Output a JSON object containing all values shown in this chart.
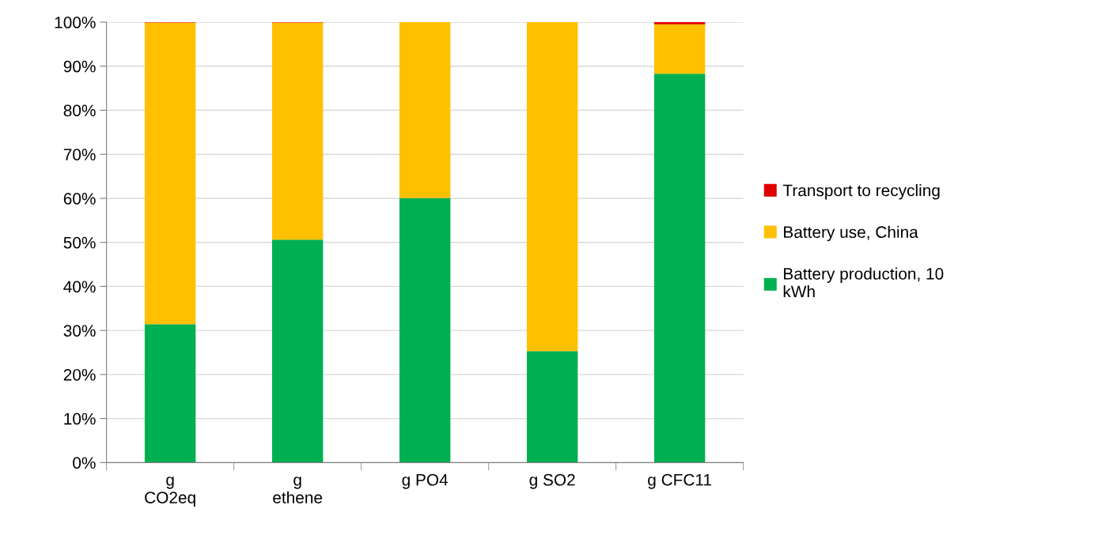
{
  "chart_data": {
    "type": "bar",
    "stacked": true,
    "categories": [
      "g\nCO2eq",
      "g\nethene",
      "g PO4",
      "g SO2",
      "g CFC11"
    ],
    "series": [
      {
        "name": "Battery production, 10\nkWh",
        "color": "#00b050",
        "values": [
          31.4,
          50.6,
          60.1,
          25.3,
          88.3
        ]
      },
      {
        "name": "Battery use, China",
        "color": "#ffc000",
        "values": [
          68.5,
          49.3,
          39.9,
          74.7,
          11.2
        ]
      },
      {
        "name": "Transport to recycling",
        "color": "#e00000",
        "values": [
          0.1,
          0.1,
          0,
          0,
          0.5
        ]
      }
    ],
    "ylim": [
      0,
      100
    ],
    "yticks": [
      {
        "value": 0,
        "label": "0%"
      },
      {
        "value": 10,
        "label": "10%"
      },
      {
        "value": 20,
        "label": "20%"
      },
      {
        "value": 30,
        "label": "30%"
      },
      {
        "value": 40,
        "label": "40%"
      },
      {
        "value": 50,
        "label": "50%"
      },
      {
        "value": 60,
        "label": "60%"
      },
      {
        "value": 70,
        "label": "70%"
      },
      {
        "value": 80,
        "label": "80%"
      },
      {
        "value": 90,
        "label": "90%"
      },
      {
        "value": 100,
        "label": "100%"
      }
    ],
    "grid": "y",
    "legend": "right"
  }
}
